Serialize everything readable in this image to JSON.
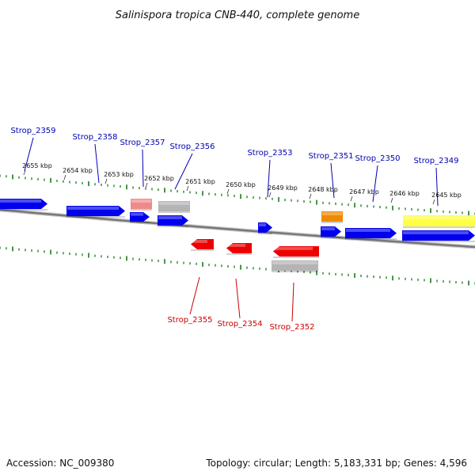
{
  "title": "Salinispora tropica CNB-440, complete genome",
  "colors": {
    "forward_label": "#0000b4",
    "reverse_label": "#cc0000",
    "tick": "#1a7a1a",
    "backbone": "#777777",
    "gene_forward": "#0000ee",
    "gene_reverse": "#ee0000",
    "gene_pink": "#f08a8a",
    "gene_gray": "#b4b4b4",
    "gene_orange": "#ee8a00",
    "gene_yellow": "#ffff44"
  },
  "scale_labels": [
    "2655 kbp",
    "2654 kbp",
    "2653 kbp",
    "2652 kbp",
    "2651 kbp",
    "2650 kbp",
    "2649 kbp",
    "2648 kbp",
    "2647 kbp",
    "2646 kbp",
    "2645 kbp"
  ],
  "forward_gene_labels": [
    "Strop_2359",
    "Strop_2358",
    "Strop_2357",
    "Strop_2356",
    "Strop_2353",
    "Strop_2351",
    "Strop_2350",
    "Strop_2349"
  ],
  "reverse_gene_labels": [
    "Strop_2355",
    "Strop_2354",
    "Strop_2352"
  ],
  "accession": "Accession: NC_009380",
  "topology": "Topology: circular; Length: 5,183,331 bp; Genes: 4,596"
}
